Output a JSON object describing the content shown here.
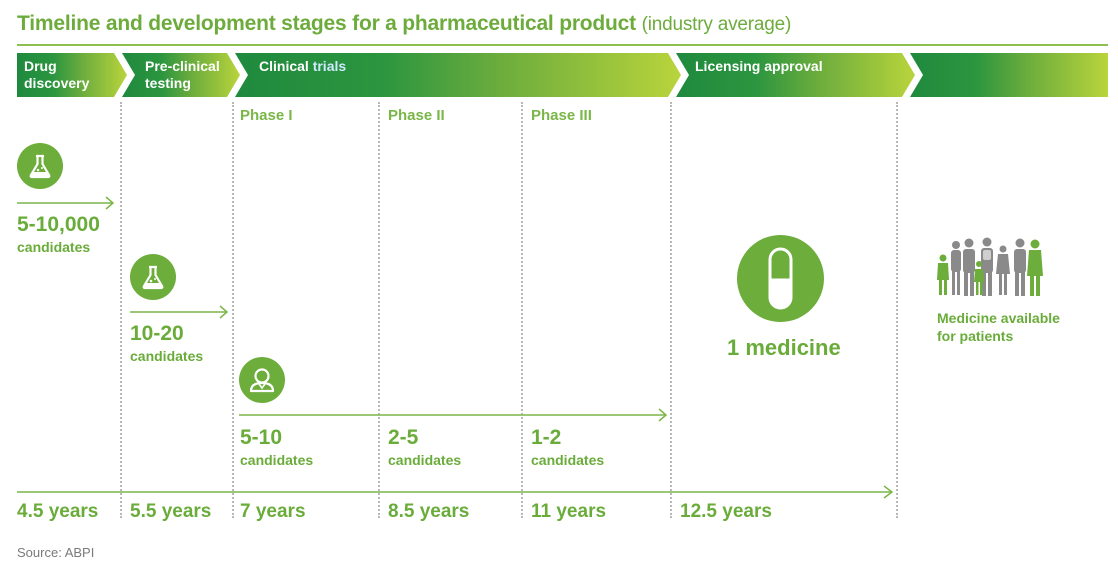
{
  "title": {
    "main": "Timeline and development stages for a pharmaceutical product",
    "sub": "(industry average)"
  },
  "stages": [
    {
      "line1": "Drug",
      "line2": "discovery"
    },
    {
      "line1": "Pre-clinical",
      "line2": "testing"
    },
    {
      "part1": "Clinical ",
      "part2": "trials"
    },
    {
      "line1": "Licensing approval"
    }
  ],
  "phases": [
    "Phase I",
    "Phase II",
    "Phase III"
  ],
  "candidates": [
    {
      "number": "5-10,000",
      "label": "candidates"
    },
    {
      "number": "10-20",
      "label": "candidates"
    },
    {
      "number": "5-10",
      "label": "candidates"
    },
    {
      "number": "2-5",
      "label": "candidates"
    },
    {
      "number": "1-2",
      "label": "candidates"
    }
  ],
  "medicine": "1 medicine",
  "patients": {
    "line1": "Medicine available",
    "line2": "for patients"
  },
  "years": [
    "4.5 years",
    "5.5 years",
    "7 years",
    "8.5 years",
    "11 years",
    "12.5 years"
  ],
  "source": "Source: ABPI",
  "colors": {
    "dark_green": "#1f8a3e",
    "light_green": "#b6d23c",
    "text_green": "#6aac3a",
    "icon_green": "#6cad3b",
    "people_gray": "#8a8a8a"
  },
  "icons": [
    "flask-icon",
    "flask-icon",
    "person-icon",
    "pill-icon",
    "people-icon"
  ]
}
